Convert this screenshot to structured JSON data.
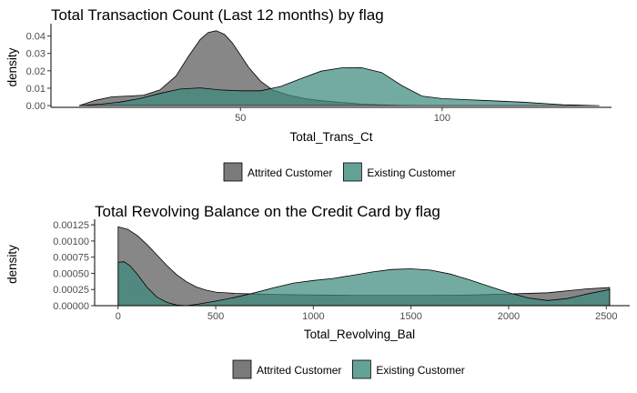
{
  "colors": {
    "attrited": "#595959",
    "existing": "#3d8b7e",
    "overlap": "#47716a"
  },
  "chart_data": [
    {
      "type": "area",
      "title": "Total Transaction Count (Last 12 months) by flag",
      "xlabel": "Total_Trans_Ct",
      "ylabel": "density",
      "xlim": [
        3,
        142
      ],
      "ylim": [
        -0.001,
        0.045
      ],
      "xticks": [
        {
          "v": 50,
          "label": "50"
        },
        {
          "v": 100,
          "label": "100"
        }
      ],
      "yticks": [
        {
          "v": 0.0,
          "label": "0.00"
        },
        {
          "v": 0.01,
          "label": "0.01"
        },
        {
          "v": 0.02,
          "label": "0.02"
        },
        {
          "v": 0.03,
          "label": "0.03"
        },
        {
          "v": 0.04,
          "label": "0.04"
        }
      ],
      "legend": "bottom",
      "series": [
        {
          "name": "Attrited Customer",
          "x": [
            10,
            14,
            18,
            22,
            26,
            30,
            34,
            37,
            40,
            42,
            44,
            46,
            48,
            50,
            52,
            55,
            58,
            62,
            66,
            70,
            75,
            80,
            85,
            90,
            94
          ],
          "y": [
            0.0,
            0.003,
            0.005,
            0.0055,
            0.006,
            0.009,
            0.017,
            0.028,
            0.038,
            0.042,
            0.043,
            0.041,
            0.036,
            0.029,
            0.022,
            0.014,
            0.009,
            0.006,
            0.004,
            0.0028,
            0.0018,
            0.0009,
            0.0004,
            0.0001,
            0.0
          ]
        },
        {
          "name": "Existing Customer",
          "x": [
            10,
            15,
            20,
            25,
            30,
            35,
            40,
            45,
            50,
            55,
            60,
            65,
            70,
            75,
            80,
            85,
            90,
            95,
            100,
            110,
            120,
            130,
            139
          ],
          "y": [
            0.0,
            0.0008,
            0.002,
            0.004,
            0.007,
            0.0095,
            0.0102,
            0.009,
            0.0085,
            0.0085,
            0.011,
            0.0155,
            0.0198,
            0.0217,
            0.0218,
            0.019,
            0.0115,
            0.0055,
            0.004,
            0.003,
            0.002,
            0.0005,
            0.0
          ]
        }
      ]
    },
    {
      "type": "area",
      "title": "Total Revolving Balance on the Credit Card by flag",
      "xlabel": "Total_Revolving_Bal",
      "ylabel": "density",
      "xlim": [
        -120,
        2620
      ],
      "ylim": [
        0,
        0.00128
      ],
      "xticks": [
        {
          "v": 0,
          "label": "0"
        },
        {
          "v": 500,
          "label": "500"
        },
        {
          "v": 1000,
          "label": "1000"
        },
        {
          "v": 1500,
          "label": "1500"
        },
        {
          "v": 2000,
          "label": "2000"
        },
        {
          "v": 2500,
          "label": "2500"
        }
      ],
      "yticks": [
        {
          "v": 0.0,
          "label": "0.00000"
        },
        {
          "v": 0.00025,
          "label": "0.00025"
        },
        {
          "v": 0.0005,
          "label": "0.00050"
        },
        {
          "v": 0.00075,
          "label": "0.00075"
        },
        {
          "v": 0.001,
          "label": "0.00100"
        },
        {
          "v": 0.00125,
          "label": "0.00125"
        }
      ],
      "legend": "bottom",
      "series": [
        {
          "name": "Attrited Customer",
          "x": [
            0,
            50,
            100,
            150,
            200,
            250,
            300,
            350,
            400,
            450,
            500,
            600,
            700,
            800,
            1000,
            1200,
            1400,
            1600,
            1800,
            2000,
            2200,
            2400,
            2517
          ],
          "y": [
            0.00122,
            0.00118,
            0.00108,
            0.00094,
            0.00078,
            0.00062,
            0.00048,
            0.00037,
            0.00029,
            0.00024,
            0.00021,
            0.00019,
            0.00018,
            0.000175,
            0.000165,
            0.00016,
            0.00016,
            0.00016,
            0.000165,
            0.00018,
            0.0002,
            0.00026,
            0.00028
          ]
        },
        {
          "name": "Existing Customer",
          "x": [
            0,
            30,
            60,
            100,
            150,
            200,
            250,
            300,
            350,
            400,
            500,
            600,
            700,
            800,
            900,
            1000,
            1100,
            1200,
            1300,
            1400,
            1500,
            1600,
            1700,
            1800,
            1900,
            2000,
            2100,
            2200,
            2300,
            2400,
            2517
          ],
          "y": [
            0.00067,
            0.00068,
            0.00062,
            0.00048,
            0.00028,
            0.00013,
            5e-05,
            1e-05,
            0.0,
            2e-05,
            7e-05,
            0.00013,
            0.0002,
            0.00028,
            0.00035,
            0.00039,
            0.00042,
            0.00047,
            0.00052,
            0.00056,
            0.00057,
            0.00055,
            0.00049,
            0.0004,
            0.0003,
            0.0002,
            0.00012,
            8e-05,
            0.00011,
            0.00018,
            0.00025
          ]
        }
      ]
    }
  ]
}
